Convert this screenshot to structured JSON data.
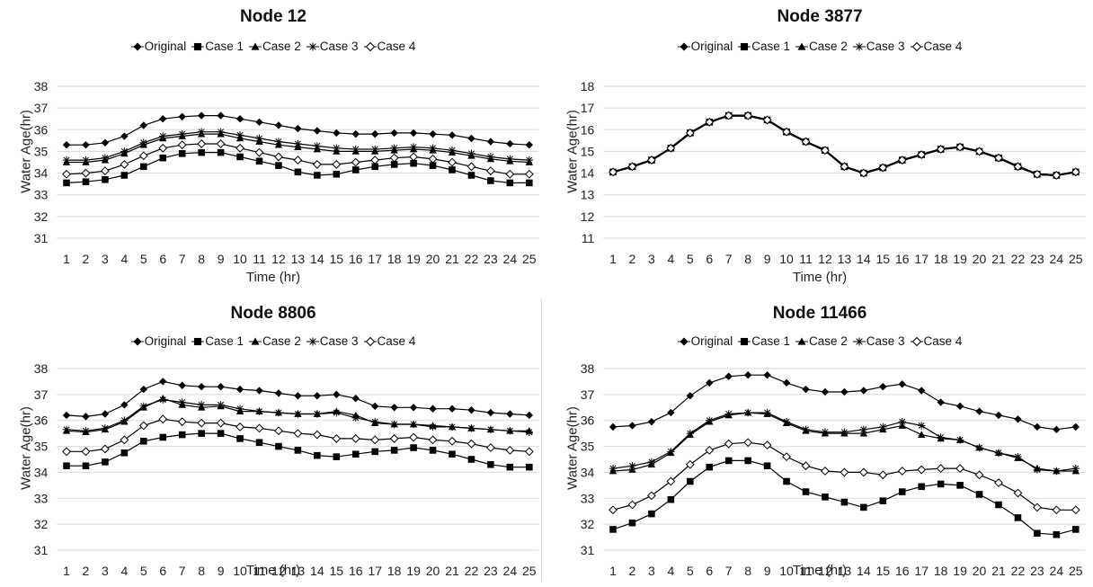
{
  "figure": {
    "colors": {
      "line": "#000000",
      "grid": "#d9d9d9",
      "text": "#222222"
    },
    "legend": [
      {
        "name": "Original",
        "marker": "diamond-filled-icon"
      },
      {
        "name": "Case 1",
        "marker": "square-filled-icon"
      },
      {
        "name": "Case 2",
        "marker": "triangle-filled-icon"
      },
      {
        "name": "Case 3",
        "marker": "asterisk-icon"
      },
      {
        "name": "Case 4",
        "marker": "diamond-open-icon"
      }
    ]
  },
  "chart_data": [
    {
      "type": "line",
      "title": "Node 12",
      "xlabel": "Time (hr)",
      "ylabel": "Water Age(hr)",
      "ylim": [
        31,
        38
      ],
      "yticks": [
        31,
        32,
        33,
        34,
        35,
        36,
        37,
        38
      ],
      "grid": true,
      "legend": "top",
      "x": [
        1,
        2,
        3,
        4,
        5,
        6,
        7,
        8,
        9,
        10,
        11,
        12,
        13,
        14,
        15,
        16,
        17,
        18,
        19,
        20,
        21,
        22,
        23,
        24,
        25
      ],
      "series": [
        {
          "name": "Original",
          "values": [
            35.3,
            35.3,
            35.4,
            35.7,
            36.2,
            36.5,
            36.6,
            36.65,
            36.65,
            36.5,
            36.35,
            36.2,
            36.05,
            35.95,
            35.85,
            35.8,
            35.8,
            35.85,
            35.85,
            35.8,
            35.75,
            35.6,
            35.45,
            35.35,
            35.3
          ]
        },
        {
          "name": "Case 1",
          "values": [
            33.55,
            33.6,
            33.7,
            33.9,
            34.3,
            34.7,
            34.9,
            34.95,
            34.95,
            34.75,
            34.55,
            34.35,
            34.05,
            33.9,
            33.95,
            34.15,
            34.3,
            34.4,
            34.45,
            34.35,
            34.15,
            33.9,
            33.65,
            33.55,
            33.55
          ]
        },
        {
          "name": "Case 2",
          "values": [
            34.5,
            34.5,
            34.6,
            34.9,
            35.3,
            35.6,
            35.7,
            35.8,
            35.8,
            35.6,
            35.45,
            35.3,
            35.2,
            35.1,
            35.0,
            35.0,
            35.0,
            35.05,
            35.1,
            35.05,
            34.95,
            34.8,
            34.65,
            34.55,
            34.5
          ]
        },
        {
          "name": "Case 3",
          "values": [
            34.6,
            34.6,
            34.7,
            35.0,
            35.4,
            35.7,
            35.8,
            35.9,
            35.9,
            35.75,
            35.6,
            35.45,
            35.35,
            35.25,
            35.15,
            35.1,
            35.1,
            35.15,
            35.2,
            35.15,
            35.05,
            34.9,
            34.75,
            34.65,
            34.6
          ]
        },
        {
          "name": "Case 4",
          "values": [
            33.95,
            34.0,
            34.1,
            34.4,
            34.8,
            35.15,
            35.3,
            35.35,
            35.35,
            35.15,
            34.95,
            34.75,
            34.6,
            34.4,
            34.4,
            34.5,
            34.6,
            34.7,
            34.75,
            34.65,
            34.5,
            34.3,
            34.1,
            33.95,
            33.95
          ]
        }
      ]
    },
    {
      "type": "line",
      "title": "Node 3877",
      "xlabel": "Time (hr)",
      "ylabel": "Water Age(hr)",
      "ylim": [
        11,
        18
      ],
      "yticks": [
        11,
        12,
        13,
        14,
        15,
        16,
        17,
        18
      ],
      "grid": true,
      "legend": "top",
      "x": [
        1,
        2,
        3,
        4,
        5,
        6,
        7,
        8,
        9,
        10,
        11,
        12,
        13,
        14,
        15,
        16,
        17,
        18,
        19,
        20,
        21,
        22,
        23,
        24,
        25
      ],
      "series": [
        {
          "name": "Original",
          "values": [
            14.05,
            14.3,
            14.6,
            15.15,
            15.85,
            16.35,
            16.65,
            16.65,
            16.45,
            15.9,
            15.45,
            15.05,
            14.3,
            14.0,
            14.25,
            14.6,
            14.85,
            15.1,
            15.2,
            15.0,
            14.7,
            14.3,
            13.95,
            13.9,
            14.05
          ]
        },
        {
          "name": "Case 1",
          "values": [
            14.05,
            14.3,
            14.6,
            15.15,
            15.85,
            16.35,
            16.65,
            16.65,
            16.45,
            15.9,
            15.45,
            15.05,
            14.3,
            14.0,
            14.25,
            14.6,
            14.85,
            15.1,
            15.2,
            15.0,
            14.7,
            14.3,
            13.95,
            13.9,
            14.05
          ]
        },
        {
          "name": "Case 2",
          "values": [
            14.05,
            14.3,
            14.6,
            15.15,
            15.85,
            16.35,
            16.65,
            16.65,
            16.45,
            15.9,
            15.45,
            15.05,
            14.3,
            14.0,
            14.25,
            14.6,
            14.85,
            15.1,
            15.2,
            15.0,
            14.7,
            14.3,
            13.95,
            13.9,
            14.05
          ]
        },
        {
          "name": "Case 3",
          "values": [
            14.05,
            14.3,
            14.6,
            15.15,
            15.85,
            16.35,
            16.65,
            16.65,
            16.45,
            15.9,
            15.45,
            15.05,
            14.3,
            14.0,
            14.25,
            14.6,
            14.85,
            15.1,
            15.2,
            15.0,
            14.7,
            14.3,
            13.95,
            13.9,
            14.05
          ]
        },
        {
          "name": "Case 4",
          "values": [
            14.05,
            14.3,
            14.6,
            15.15,
            15.85,
            16.35,
            16.65,
            16.65,
            16.45,
            15.9,
            15.45,
            15.05,
            14.3,
            14.0,
            14.25,
            14.6,
            14.85,
            15.1,
            15.2,
            15.0,
            14.7,
            14.3,
            13.95,
            13.9,
            14.05
          ]
        }
      ]
    },
    {
      "type": "line",
      "title": "Node 8806",
      "xlabel": "Time (hr)",
      "ylabel": "Water Age(hr)",
      "ylim": [
        31,
        38
      ],
      "yticks": [
        31,
        32,
        33,
        34,
        35,
        36,
        37,
        38
      ],
      "grid": true,
      "legend": "top",
      "x": [
        1,
        2,
        3,
        4,
        5,
        6,
        7,
        8,
        9,
        10,
        11,
        12,
        13,
        14,
        15,
        16,
        17,
        18,
        19,
        20,
        21,
        22,
        23,
        24,
        25
      ],
      "series": [
        {
          "name": "Original",
          "values": [
            36.2,
            36.15,
            36.25,
            36.6,
            37.2,
            37.5,
            37.35,
            37.3,
            37.3,
            37.2,
            37.15,
            37.05,
            36.95,
            36.95,
            37.0,
            36.85,
            36.55,
            36.5,
            36.5,
            36.45,
            36.45,
            36.4,
            36.3,
            36.25,
            36.2
          ]
        },
        {
          "name": "Case 1",
          "values": [
            34.25,
            34.25,
            34.4,
            34.75,
            35.2,
            35.35,
            35.45,
            35.5,
            35.5,
            35.3,
            35.15,
            35.0,
            34.85,
            34.65,
            34.6,
            34.7,
            34.8,
            34.85,
            34.95,
            34.85,
            34.7,
            34.5,
            34.3,
            34.2,
            34.2
          ]
        },
        {
          "name": "Case 2",
          "values": [
            35.6,
            35.55,
            35.65,
            35.95,
            36.5,
            36.85,
            36.6,
            36.5,
            36.55,
            36.35,
            36.35,
            36.3,
            36.25,
            36.25,
            36.35,
            36.2,
            35.9,
            35.85,
            35.85,
            35.8,
            35.75,
            35.7,
            35.65,
            35.6,
            35.6
          ]
        },
        {
          "name": "Case 3",
          "values": [
            35.65,
            35.6,
            35.7,
            36.0,
            36.55,
            36.8,
            36.7,
            36.6,
            36.6,
            36.45,
            36.35,
            36.3,
            36.25,
            36.25,
            36.3,
            36.1,
            35.95,
            35.85,
            35.85,
            35.75,
            35.75,
            35.7,
            35.65,
            35.6,
            35.55
          ]
        },
        {
          "name": "Case 4",
          "values": [
            34.8,
            34.8,
            34.9,
            35.25,
            35.8,
            36.05,
            35.95,
            35.9,
            35.9,
            35.75,
            35.7,
            35.6,
            35.5,
            35.45,
            35.3,
            35.3,
            35.25,
            35.3,
            35.35,
            35.25,
            35.2,
            35.1,
            34.95,
            34.85,
            34.8
          ]
        }
      ]
    },
    {
      "type": "line",
      "title": "Node 11466",
      "xlabel": "Time (hr)",
      "ylabel": "Water Age(hr)",
      "ylim": [
        31,
        38
      ],
      "yticks": [
        31,
        32,
        33,
        34,
        35,
        36,
        37,
        38
      ],
      "grid": true,
      "legend": "top",
      "x": [
        1,
        2,
        3,
        4,
        5,
        6,
        7,
        8,
        9,
        10,
        11,
        12,
        13,
        14,
        15,
        16,
        17,
        18,
        19,
        20,
        21,
        22,
        23,
        24,
        25
      ],
      "series": [
        {
          "name": "Original",
          "values": [
            35.75,
            35.8,
            35.95,
            36.3,
            36.95,
            37.45,
            37.7,
            37.75,
            37.75,
            37.45,
            37.2,
            37.1,
            37.1,
            37.15,
            37.3,
            37.4,
            37.15,
            36.7,
            36.55,
            36.35,
            36.2,
            36.05,
            35.75,
            35.65,
            35.75
          ]
        },
        {
          "name": "Case 1",
          "values": [
            31.8,
            32.05,
            32.4,
            32.95,
            33.65,
            34.2,
            34.45,
            34.45,
            34.25,
            33.65,
            33.25,
            33.05,
            32.85,
            32.65,
            32.9,
            33.25,
            33.45,
            33.55,
            33.5,
            33.15,
            32.75,
            32.25,
            31.65,
            31.6,
            31.8
          ]
        },
        {
          "name": "Case 2",
          "values": [
            34.05,
            34.1,
            34.3,
            34.75,
            35.45,
            35.95,
            36.2,
            36.3,
            36.25,
            35.9,
            35.6,
            35.5,
            35.5,
            35.5,
            35.65,
            35.8,
            35.45,
            35.3,
            35.25,
            34.95,
            34.75,
            34.55,
            34.15,
            34.05,
            34.05
          ]
        },
        {
          "name": "Case 3",
          "values": [
            34.15,
            34.25,
            34.4,
            34.8,
            35.5,
            36.0,
            36.25,
            36.3,
            36.3,
            35.95,
            35.65,
            35.55,
            35.55,
            35.65,
            35.75,
            35.95,
            35.8,
            35.35,
            35.25,
            34.95,
            34.75,
            34.6,
            34.1,
            34.05,
            34.15
          ]
        },
        {
          "name": "Case 4",
          "values": [
            32.55,
            32.75,
            33.1,
            33.65,
            34.3,
            34.85,
            35.1,
            35.15,
            35.05,
            34.6,
            34.25,
            34.05,
            34.0,
            34.0,
            33.9,
            34.05,
            34.1,
            34.15,
            34.15,
            33.9,
            33.6,
            33.2,
            32.65,
            32.55,
            32.55
          ]
        }
      ]
    }
  ]
}
